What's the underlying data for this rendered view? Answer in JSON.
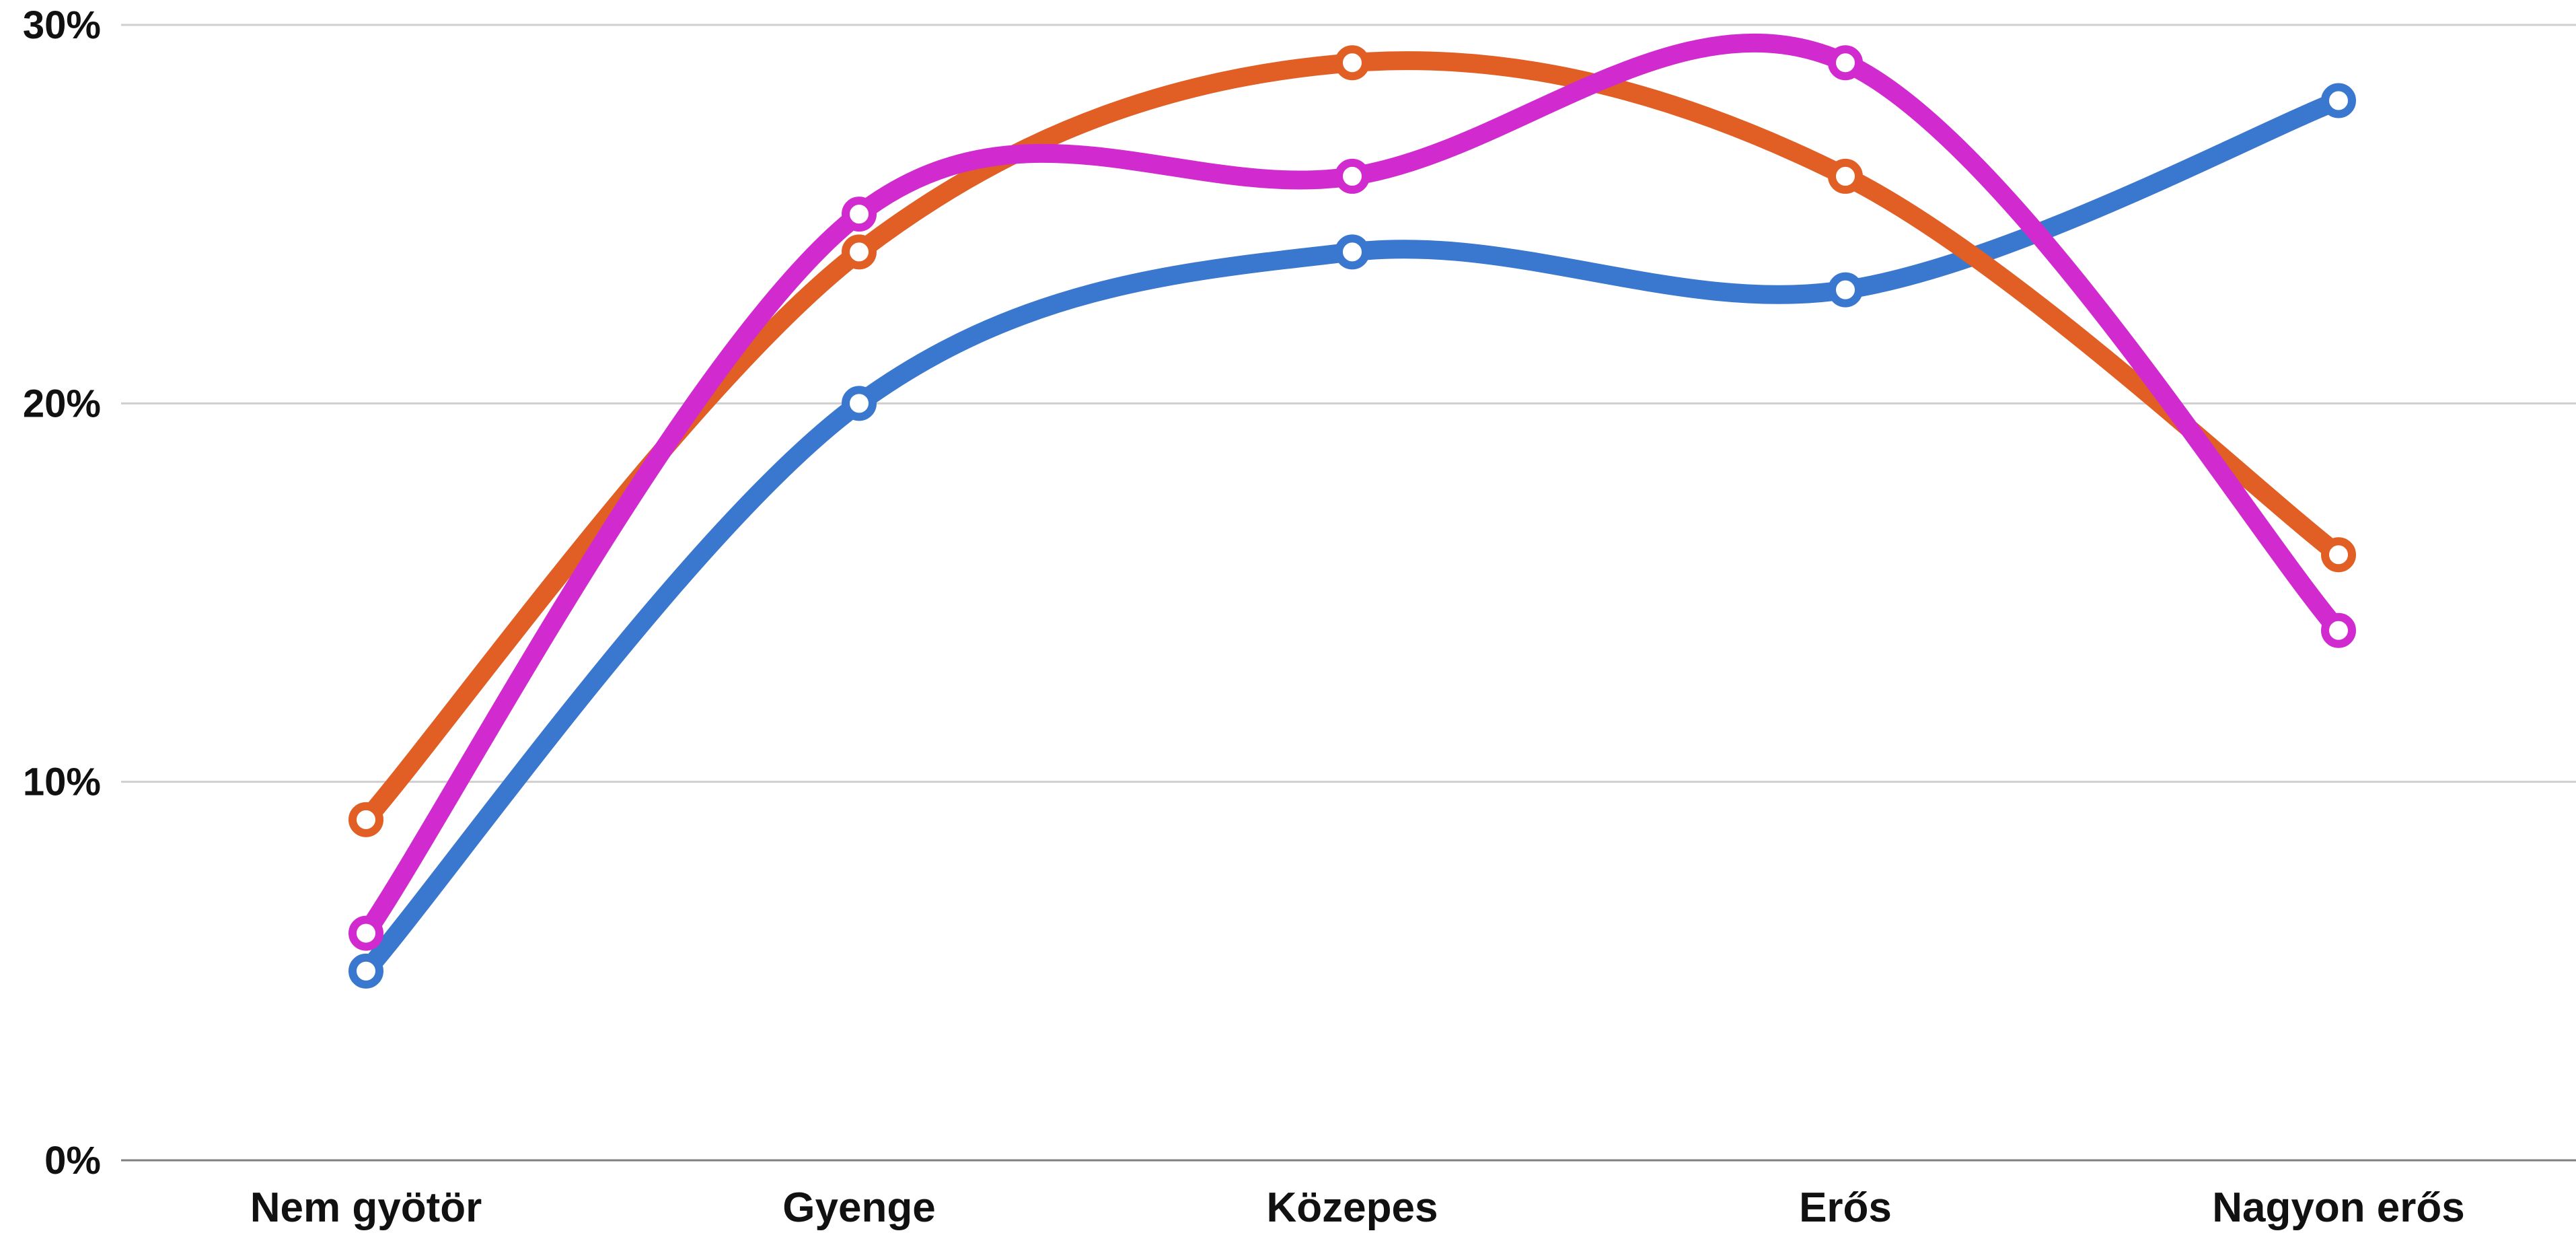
{
  "chart_data": {
    "type": "line",
    "categories": [
      "Nem gyötör",
      "Gyenge",
      "Közepes",
      "Erős",
      "Nagyon erős"
    ],
    "ylim": [
      0,
      30
    ],
    "y_ticks": [
      0,
      10,
      20,
      30
    ],
    "y_tick_labels": [
      "0%",
      "10%",
      "20%",
      "30%"
    ],
    "grid": true,
    "smooth": true,
    "series": [
      {
        "values": [
          5,
          20,
          24,
          23,
          28
        ],
        "color": "#3a78cf"
      },
      {
        "values": [
          9,
          24,
          29,
          26,
          16
        ],
        "color": "#e15f24"
      },
      {
        "values": [
          6,
          25,
          26,
          29,
          14
        ],
        "color": "#d12bcf"
      }
    ],
    "title": "",
    "xlabel": "",
    "ylabel": ""
  }
}
